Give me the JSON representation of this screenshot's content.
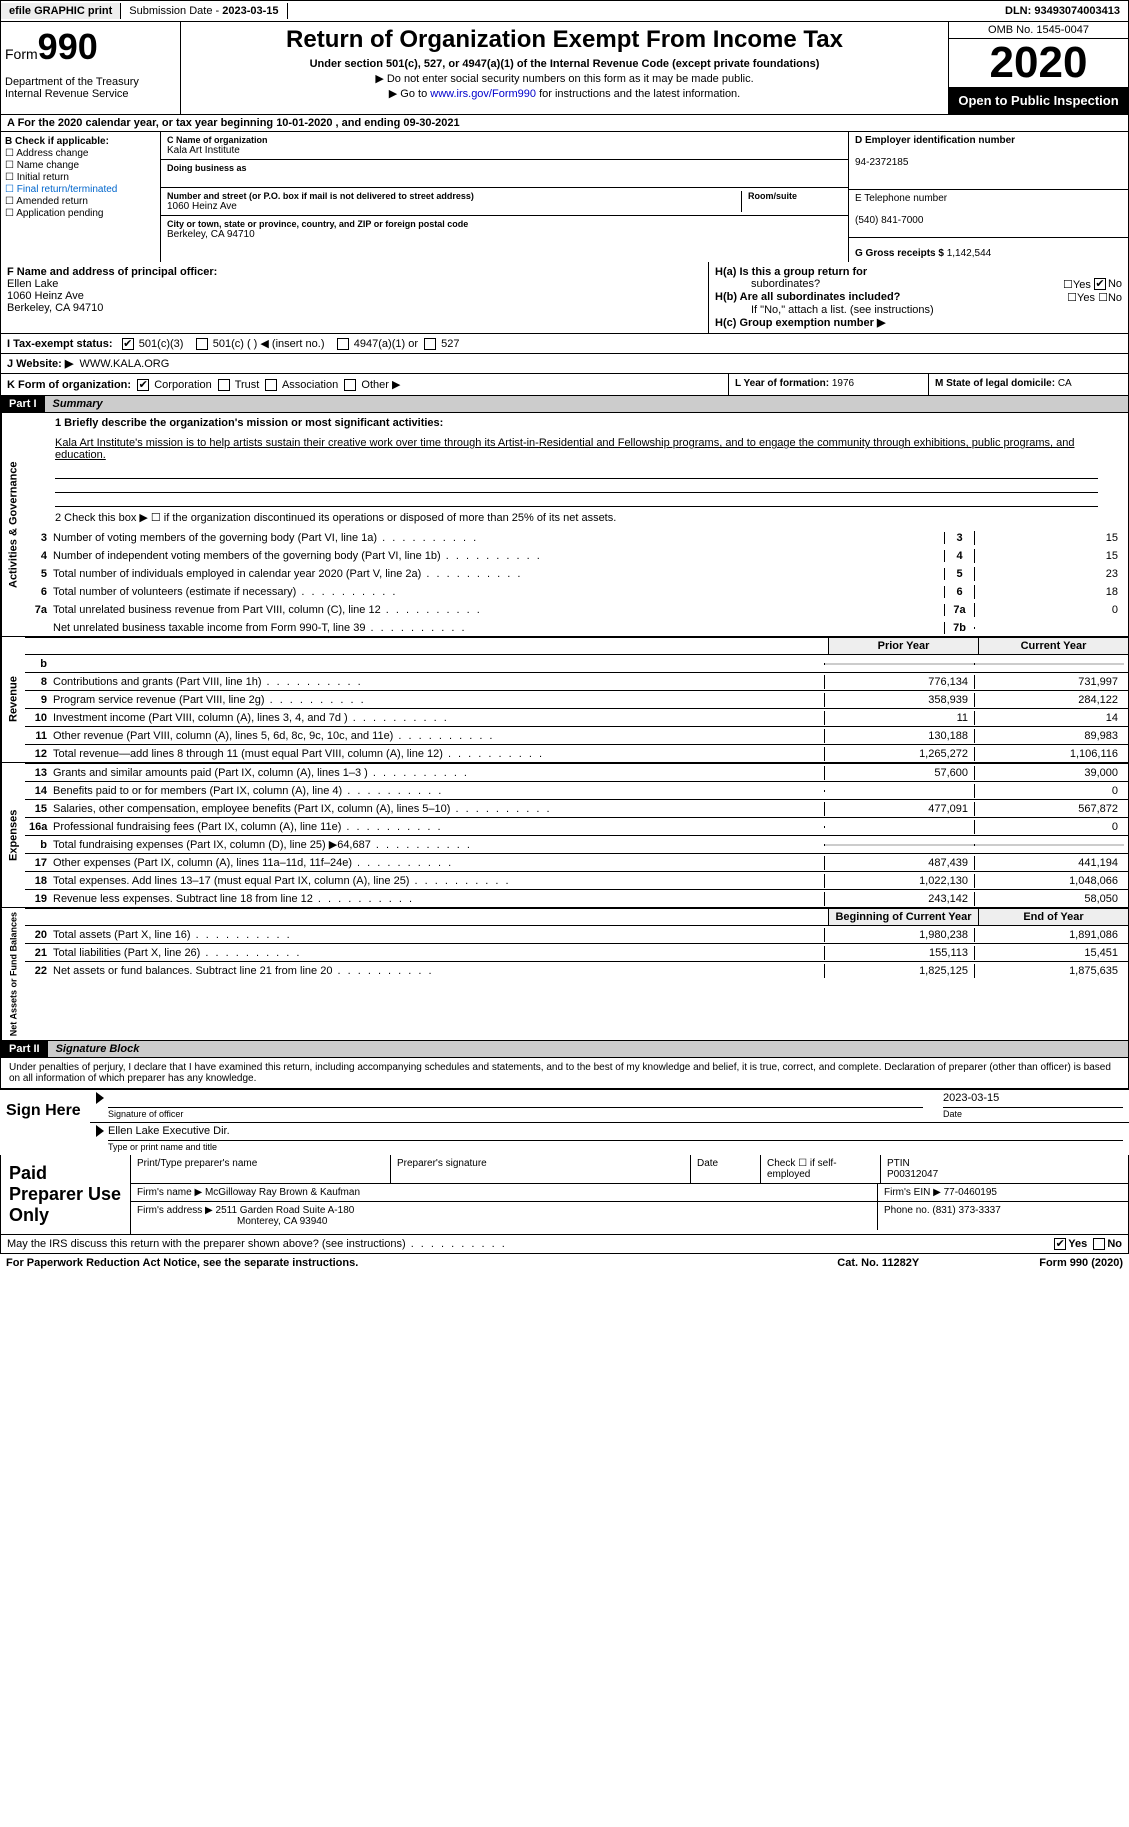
{
  "top": {
    "efile": "efile GRAPHIC print",
    "sub_date_lbl": "Submission Date - ",
    "sub_date": "2023-03-15",
    "dln_lbl": "DLN: ",
    "dln": "93493074003413"
  },
  "header": {
    "form_lbl": "Form",
    "form_num": "990",
    "dept": "Department of the Treasury\nInternal Revenue Service",
    "title": "Return of Organization Exempt From Income Tax",
    "sub": "Under section 501(c), 527, or 4947(a)(1) of the Internal Revenue Code (except private foundations)",
    "note1": "▶ Do not enter social security numbers on this form as it may be made public.",
    "note2_pre": "▶ Go to ",
    "note2_link": "www.irs.gov/Form990",
    "note2_post": " for instructions and the latest information.",
    "omb": "OMB No. 1545-0047",
    "year": "2020",
    "inspect": "Open to Public Inspection"
  },
  "row_a": "A For the 2020 calendar year, or tax year beginning 10-01-2020   , and ending 09-30-2021",
  "b": {
    "hdr": "B Check if applicable:",
    "items": [
      "Address change",
      "Name change",
      "Initial return",
      "Final return/terminated",
      "Amended return",
      "Application pending"
    ]
  },
  "c": {
    "name_lbl": "C Name of organization",
    "name": "Kala Art Institute",
    "dba_lbl": "Doing business as",
    "addr_lbl": "Number and street (or P.O. box if mail is not delivered to street address)",
    "room_lbl": "Room/suite",
    "addr": "1060 Heinz Ave",
    "city_lbl": "City or town, state or province, country, and ZIP or foreign postal code",
    "city": "Berkeley, CA  94710"
  },
  "d": {
    "ein_lbl": "D Employer identification number",
    "ein": "94-2372185",
    "tel_lbl": "E Telephone number",
    "tel": "(540) 841-7000",
    "gross_lbl": "G Gross receipts $ ",
    "gross": "1,142,544"
  },
  "f": {
    "lbl": "F Name and address of principal officer:",
    "name": "Ellen Lake",
    "addr1": "1060 Heinz Ave",
    "addr2": "Berkeley, CA  94710"
  },
  "h": {
    "a_lbl": "H(a)  Is this a group return for",
    "a_sub": "subordinates?",
    "b_lbl": "H(b)  Are all subordinates included?",
    "b_note": "If \"No,\" attach a list. (see instructions)",
    "c_lbl": "H(c)  Group exemption number ▶",
    "yes": "Yes",
    "no": "No"
  },
  "i": {
    "lbl": "I   Tax-exempt status:",
    "opts": [
      "501(c)(3)",
      "501(c) (  ) ◀ (insert no.)",
      "4947(a)(1) or",
      "527"
    ]
  },
  "j": {
    "lbl": "J   Website: ▶",
    "val": "WWW.KALA.ORG"
  },
  "k": {
    "lbl": "K Form of organization:",
    "opts": [
      "Corporation",
      "Trust",
      "Association",
      "Other ▶"
    ]
  },
  "l": {
    "lbl": "L Year of formation: ",
    "val": "1976"
  },
  "m": {
    "lbl": "M State of legal domicile: ",
    "val": "CA"
  },
  "part1": {
    "hdr": "Part I",
    "title": "Summary",
    "q1": "1  Briefly describe the organization's mission or most significant activities:",
    "mission": "Kala Art Institute's mission is to help artists sustain their creative work over time through its Artist-in-Residential and Fellowship programs, and to engage the community through exhibitions, public programs, and education.",
    "q2": "2   Check this box ▶ ☐  if the organization discontinued its operations or disposed of more than 25% of its net assets.",
    "gov_lines": [
      {
        "n": "3",
        "d": "Number of voting members of the governing body (Part VI, line 1a)",
        "c": "3",
        "v": "15"
      },
      {
        "n": "4",
        "d": "Number of independent voting members of the governing body (Part VI, line 1b)",
        "c": "4",
        "v": "15"
      },
      {
        "n": "5",
        "d": "Total number of individuals employed in calendar year 2020 (Part V, line 2a)",
        "c": "5",
        "v": "23"
      },
      {
        "n": "6",
        "d": "Total number of volunteers (estimate if necessary)",
        "c": "6",
        "v": "18"
      },
      {
        "n": "7a",
        "d": "Total unrelated business revenue from Part VIII, column (C), line 12",
        "c": "7a",
        "v": "0"
      },
      {
        "n": "",
        "d": "Net unrelated business taxable income from Form 990-T, line 39",
        "c": "7b",
        "v": ""
      }
    ],
    "col_prior": "Prior Year",
    "col_curr": "Current Year",
    "rev_lines": [
      {
        "n": "b",
        "d": "",
        "p": "",
        "c": "",
        "shade": true
      },
      {
        "n": "8",
        "d": "Contributions and grants (Part VIII, line 1h)",
        "p": "776,134",
        "c": "731,997"
      },
      {
        "n": "9",
        "d": "Program service revenue (Part VIII, line 2g)",
        "p": "358,939",
        "c": "284,122"
      },
      {
        "n": "10",
        "d": "Investment income (Part VIII, column (A), lines 3, 4, and 7d )",
        "p": "11",
        "c": "14"
      },
      {
        "n": "11",
        "d": "Other revenue (Part VIII, column (A), lines 5, 6d, 8c, 9c, 10c, and 11e)",
        "p": "130,188",
        "c": "89,983"
      },
      {
        "n": "12",
        "d": "Total revenue—add lines 8 through 11 (must equal Part VIII, column (A), line 12)",
        "p": "1,265,272",
        "c": "1,106,116"
      }
    ],
    "exp_lines": [
      {
        "n": "13",
        "d": "Grants and similar amounts paid (Part IX, column (A), lines 1–3 )",
        "p": "57,600",
        "c": "39,000"
      },
      {
        "n": "14",
        "d": "Benefits paid to or for members (Part IX, column (A), line 4)",
        "p": "",
        "c": "0"
      },
      {
        "n": "15",
        "d": "Salaries, other compensation, employee benefits (Part IX, column (A), lines 5–10)",
        "p": "477,091",
        "c": "567,872"
      },
      {
        "n": "16a",
        "d": "Professional fundraising fees (Part IX, column (A), line 11e)",
        "p": "",
        "c": "0"
      },
      {
        "n": "b",
        "d": "Total fundraising expenses (Part IX, column (D), line 25) ▶64,687",
        "p": "",
        "c": "",
        "shade": true
      },
      {
        "n": "17",
        "d": "Other expenses (Part IX, column (A), lines 11a–11d, 11f–24e)",
        "p": "487,439",
        "c": "441,194"
      },
      {
        "n": "18",
        "d": "Total expenses. Add lines 13–17 (must equal Part IX, column (A), line 25)",
        "p": "1,022,130",
        "c": "1,048,066"
      },
      {
        "n": "19",
        "d": "Revenue less expenses. Subtract line 18 from line 12",
        "p": "243,142",
        "c": "58,050"
      }
    ],
    "col_begin": "Beginning of Current Year",
    "col_end": "End of Year",
    "net_lines": [
      {
        "n": "20",
        "d": "Total assets (Part X, line 16)",
        "p": "1,980,238",
        "c": "1,891,086"
      },
      {
        "n": "21",
        "d": "Total liabilities (Part X, line 26)",
        "p": "155,113",
        "c": "15,451"
      },
      {
        "n": "22",
        "d": "Net assets or fund balances. Subtract line 21 from line 20",
        "p": "1,825,125",
        "c": "1,875,635"
      }
    ],
    "side_gov": "Activities & Governance",
    "side_rev": "Revenue",
    "side_exp": "Expenses",
    "side_net": "Net Assets or Fund Balances"
  },
  "part2": {
    "hdr": "Part II",
    "title": "Signature Block",
    "decl": "Under penalties of perjury, I declare that I have examined this return, including accompanying schedules and statements, and to the best of my knowledge and belief, it is true, correct, and complete. Declaration of preparer (other than officer) is based on all information of which preparer has any knowledge.",
    "sign_here": "Sign Here",
    "sig_lbl": "Signature of officer",
    "date_lbl": "Date",
    "sig_date": "2023-03-15",
    "name_title": "Ellen Lake  Executive Dir.",
    "name_title_lbl": "Type or print name and title",
    "paid": "Paid Preparer Use Only",
    "p_name_lbl": "Print/Type preparer's name",
    "p_sig_lbl": "Preparer's signature",
    "p_date_lbl": "Date",
    "p_check_lbl": "Check ☐ if self-employed",
    "ptin_lbl": "PTIN",
    "ptin": "P00312047",
    "firm_name_lbl": "Firm's name    ▶ ",
    "firm_name": "McGilloway Ray Brown & Kaufman",
    "firm_ein_lbl": "Firm's EIN ▶ ",
    "firm_ein": "77-0460195",
    "firm_addr_lbl": "Firm's address ▶ ",
    "firm_addr1": "2511 Garden Road Suite A-180",
    "firm_addr2": "Monterey, CA  93940",
    "phone_lbl": "Phone no. ",
    "phone": "(831) 373-3337"
  },
  "footer": {
    "q": "May the IRS discuss this return with the preparer shown above? (see instructions)",
    "yes": "Yes",
    "no": "No",
    "pra": "For Paperwork Reduction Act Notice, see the separate instructions.",
    "cat": "Cat. No. 11282Y",
    "form": "Form 990 (2020)"
  }
}
